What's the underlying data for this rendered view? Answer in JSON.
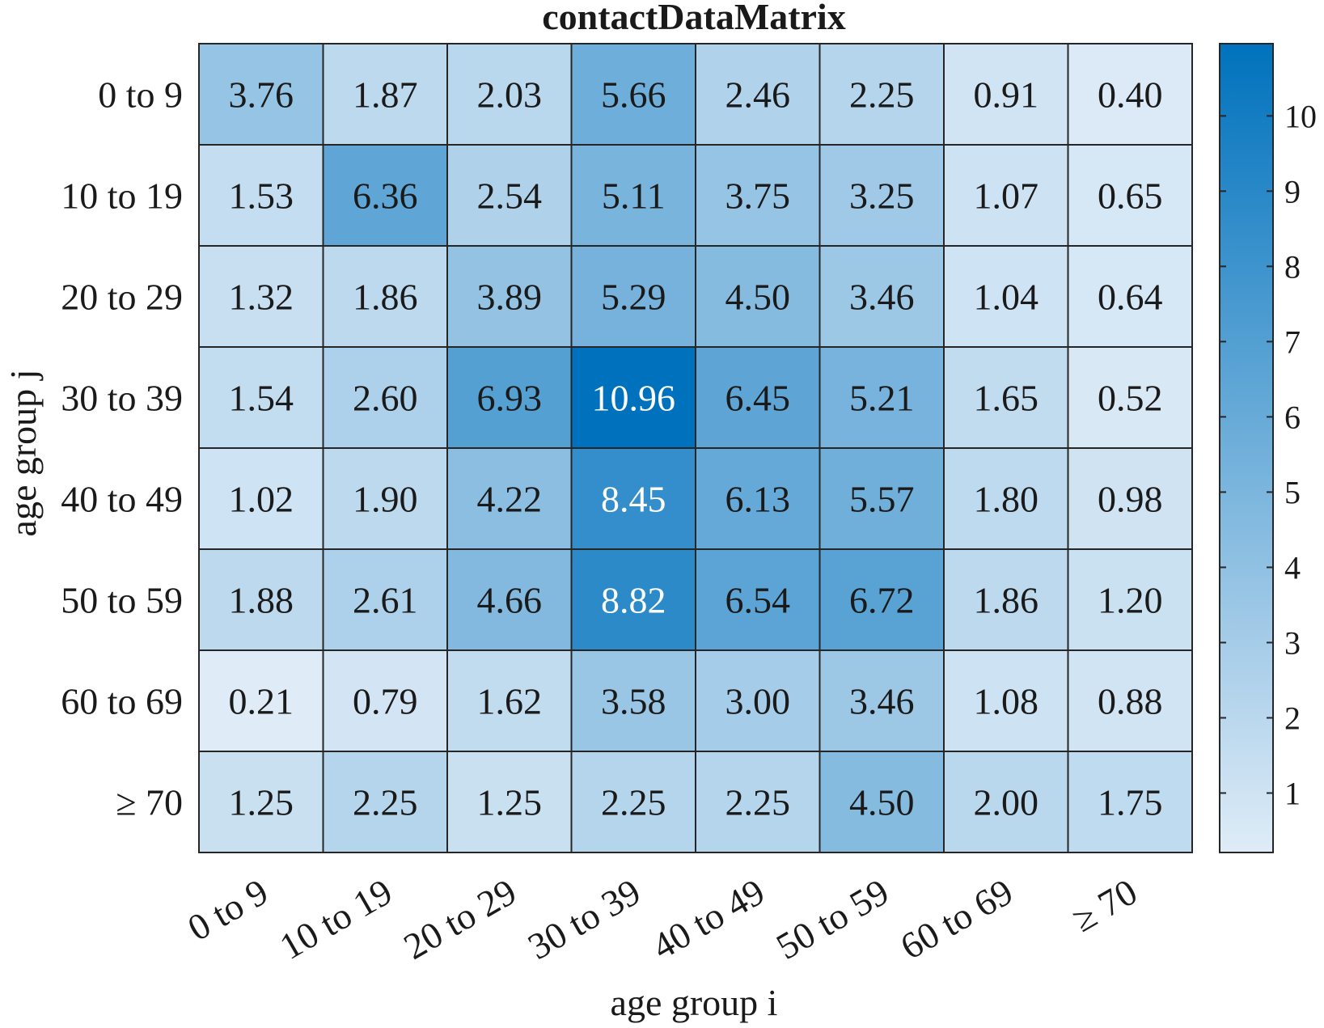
{
  "chart_data": {
    "type": "heatmap",
    "title": "contactDataMatrix",
    "xlabel": "age group i",
    "ylabel": "age group j",
    "x_categories": [
      "0 to 9",
      "10 to 19",
      "20 to 29",
      "30 to 39",
      "40 to 49",
      "50 to 59",
      "60 to 69",
      "≥ 70"
    ],
    "y_categories": [
      "0 to 9",
      "10 to 19",
      "20 to 29",
      "30 to 39",
      "40 to 49",
      "50 to 59",
      "60 to 69",
      "≥ 70"
    ],
    "values": [
      [
        "3.76",
        "1.87",
        "2.03",
        "5.66",
        "2.46",
        "2.25",
        "0.91",
        "0.40"
      ],
      [
        "1.53",
        "6.36",
        "2.54",
        "5.11",
        "3.75",
        "3.25",
        "1.07",
        "0.65"
      ],
      [
        "1.32",
        "1.86",
        "3.89",
        "5.29",
        "4.50",
        "3.46",
        "1.04",
        "0.64"
      ],
      [
        "1.54",
        "2.60",
        "6.93",
        "10.96",
        "6.45",
        "5.21",
        "1.65",
        "0.52"
      ],
      [
        "1.02",
        "1.90",
        "4.22",
        "8.45",
        "6.13",
        "5.57",
        "1.80",
        "0.98"
      ],
      [
        "1.88",
        "2.61",
        "4.66",
        "8.82",
        "6.54",
        "6.72",
        "1.86",
        "1.20"
      ],
      [
        "0.21",
        "0.79",
        "1.62",
        "3.58",
        "3.00",
        "3.46",
        "1.08",
        "0.88"
      ],
      [
        "1.25",
        "2.25",
        "1.25",
        "2.25",
        "2.25",
        "4.50",
        "2.00",
        "1.75"
      ]
    ],
    "colorbar": {
      "min": 0.21,
      "max": 10.96,
      "ticks": [
        "1",
        "2",
        "3",
        "4",
        "5",
        "6",
        "7",
        "8",
        "9",
        "10"
      ],
      "color_low": "#dfecf7",
      "color_high": "#0072bd"
    },
    "label_light_threshold": 7.5,
    "label_color_dark": "#1a1a1a",
    "label_color_light": "#ffffff",
    "grid_color": "#262626"
  }
}
